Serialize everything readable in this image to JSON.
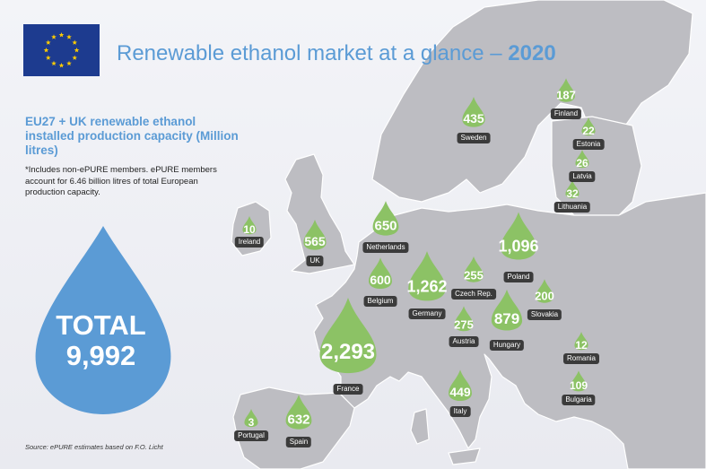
{
  "header": {
    "title_main": "Renewable ethanol market at a glance – ",
    "title_year": "2020"
  },
  "sidebar": {
    "subtitle": "EU27 + UK renewable ethanol installed production capacity (Million litres)",
    "note": "*Includes non-ePURE members. ePURE members account for 6.46 billion litres of total European production capacity.",
    "total_label": "TOTAL",
    "total_value": "9,992",
    "source": "Source: ePURE estimates based on F.O. Licht"
  },
  "colors": {
    "accent_blue": "#5b9bd5",
    "drop_green": "#8cc265",
    "total_drop": "#5b9bd5",
    "label_bg": "#3b3b3b",
    "eu_flag": "#1d3b8f",
    "eu_star": "#ffcc00"
  },
  "countries": [
    {
      "name": "Finland",
      "value": "187"
    },
    {
      "name": "Sweden",
      "value": "435"
    },
    {
      "name": "Estonia",
      "value": "22"
    },
    {
      "name": "Latvia",
      "value": "26"
    },
    {
      "name": "Lithuania",
      "value": "32"
    },
    {
      "name": "Ireland",
      "value": "10"
    },
    {
      "name": "UK",
      "value": "565"
    },
    {
      "name": "Netherlands",
      "value": "650"
    },
    {
      "name": "Poland",
      "value": "1,096"
    },
    {
      "name": "Belgium",
      "value": "600"
    },
    {
      "name": "Germany",
      "value": "1,262"
    },
    {
      "name": "Czech Rep.",
      "value": "255"
    },
    {
      "name": "Slovakia",
      "value": "200"
    },
    {
      "name": "Austria",
      "value": "275"
    },
    {
      "name": "Hungary",
      "value": "879"
    },
    {
      "name": "France",
      "value": "2,293"
    },
    {
      "name": "Romania",
      "value": "12"
    },
    {
      "name": "Bulgaria",
      "value": "109"
    },
    {
      "name": "Italy",
      "value": "449"
    },
    {
      "name": "Portugal",
      "value": "3"
    },
    {
      "name": "Spain",
      "value": "632"
    }
  ]
}
